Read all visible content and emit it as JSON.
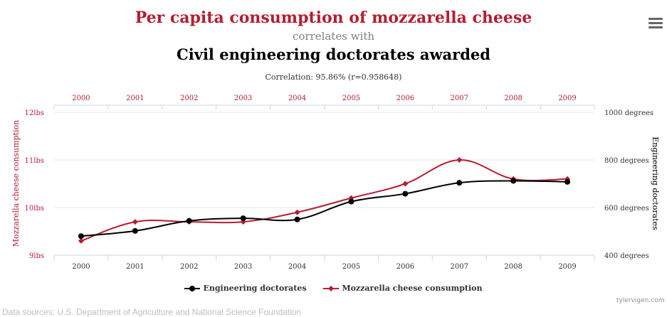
{
  "header": {
    "title_a": "Per capita consumption of mozzarella cheese",
    "connector": "correlates with",
    "title_b": "Civil engineering doctorates awarded",
    "correlation": "Correlation: 95.86% (r=0.958648)"
  },
  "menu": {
    "icon": "hamburger-menu-icon"
  },
  "chart_data": {
    "type": "line",
    "categories": [
      "2000",
      "2001",
      "2002",
      "2003",
      "2004",
      "2005",
      "2006",
      "2007",
      "2008",
      "2009"
    ],
    "top_axis_labels": [
      "2000",
      "2001",
      "2002",
      "2003",
      "2004",
      "2005",
      "2006",
      "2007",
      "2008",
      "2009"
    ],
    "bottom_axis_labels": [
      "2000",
      "2001",
      "2002",
      "2003",
      "2004",
      "2005",
      "2006",
      "2007",
      "2008",
      "2009"
    ],
    "left_axis": {
      "label": "Mozzarella cheese consumption",
      "ylim": [
        9,
        12
      ],
      "ticks": [
        {
          "value": 12,
          "label": "12lbs"
        },
        {
          "value": 11,
          "label": "11lbs"
        },
        {
          "value": 10,
          "label": "10lbs"
        },
        {
          "value": 9,
          "label": "9lbs"
        }
      ]
    },
    "right_axis": {
      "label": "Engineering doctorates",
      "ylim": [
        400,
        1000
      ],
      "ticks": [
        {
          "value": 1000,
          "label": "1000 degrees"
        },
        {
          "value": 800,
          "label": "800 degrees"
        },
        {
          "value": 600,
          "label": "600 degrees"
        },
        {
          "value": 400,
          "label": "400 degrees"
        }
      ]
    },
    "series": [
      {
        "name": "Engineering doctorates",
        "axis": "right",
        "color": "#000000",
        "marker": "circle",
        "values": [
          480,
          502,
          544,
          555,
          550,
          625,
          658,
          704,
          712,
          708
        ]
      },
      {
        "name": "Mozzarella cheese consumption",
        "axis": "left",
        "color": "#b31e30",
        "marker": "diamond",
        "values": [
          9.3,
          9.7,
          9.7,
          9.7,
          9.9,
          10.2,
          10.5,
          11.0,
          10.6,
          10.6
        ]
      }
    ],
    "grid": true,
    "legend_position": "bottom"
  },
  "footer": {
    "credit": "tylervigen.com",
    "sources": "Data sources: U.S. Department of Agriculture and National Science Foundation"
  },
  "colors": {
    "accent": "#b31e30",
    "primary": "#000000",
    "grid": "#e6e6e6",
    "axis": "#ccd6eb"
  }
}
